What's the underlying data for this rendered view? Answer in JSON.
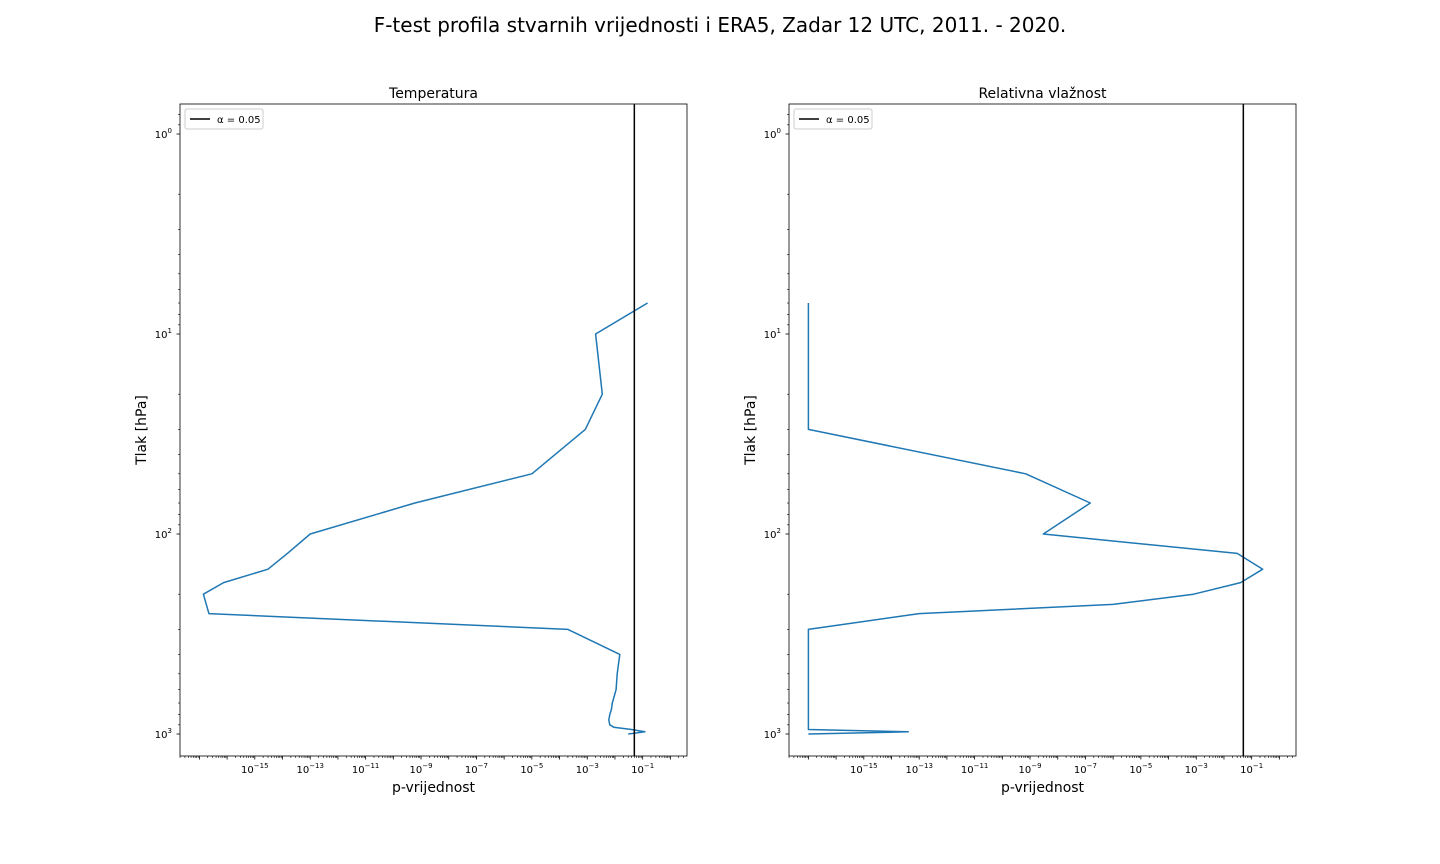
{
  "figure": {
    "suptitle": "F-test profila stvarnih vrijednosti i ERA5, Zadar 12 UTC, 2011. - 2020."
  },
  "colors": {
    "series": "#1f77b4",
    "alpha_line": "#000000",
    "axes": "#000000",
    "background": "#ffffff"
  },
  "chart_data": [
    {
      "type": "line",
      "title": "Temperatura",
      "xlabel": "p-vrijednost",
      "ylabel": "Tlak [hPa]",
      "xscale": "log",
      "yscale": "log",
      "y_inverted": true,
      "xlim_log10": [
        -17.7,
        0.6
      ],
      "ylim_log10": [
        3.11,
        -0.15
      ],
      "xticks": [
        {
          "exp": -15,
          "label": "10^-15"
        },
        {
          "exp": -13,
          "label": "10^-13"
        },
        {
          "exp": -11,
          "label": "10^-11"
        },
        {
          "exp": -9,
          "label": "10^-9"
        },
        {
          "exp": -7,
          "label": "10^-7"
        },
        {
          "exp": -5,
          "label": "10^-5"
        },
        {
          "exp": -3,
          "label": "10^-3"
        },
        {
          "exp": -1,
          "label": "10^-1"
        }
      ],
      "yticks": [
        {
          "exp": 0,
          "label": "10^0"
        },
        {
          "exp": 1,
          "label": "10^1"
        },
        {
          "exp": 2,
          "label": "10^2"
        },
        {
          "exp": 3,
          "label": "10^3"
        }
      ],
      "legend": {
        "location": "upper left",
        "entries": [
          {
            "label": "α = 0.05"
          }
        ]
      },
      "alpha_line": 0.05,
      "series": [
        {
          "pressure_hPa": [
            7,
            10,
            20,
            30,
            50,
            70,
            100,
            125,
            150,
            175,
            200,
            250,
            300,
            400,
            500,
            600,
            700,
            750,
            800,
            850,
            900,
            925,
            950,
            975,
            1000
          ],
          "p_value": [
            0.15,
            0.002,
            0.0035,
            0.00085,
            1e-05,
            6e-10,
            1e-13,
            1.5e-14,
            3e-15,
            7.5e-17,
            1.4e-17,
            2.2e-17,
            0.0002,
            0.015,
            0.012,
            0.011,
            0.008,
            0.0075,
            0.0065,
            0.006,
            0.0065,
            0.009,
            0.04,
            0.12,
            0.03
          ]
        }
      ]
    },
    {
      "type": "line",
      "title": "Relativna vlažnost",
      "xlabel": "p-vrijednost",
      "ylabel": "Tlak [hPa]",
      "xscale": "log",
      "yscale": "log",
      "y_inverted": true,
      "xlim_log10": [
        -17.7,
        0.6
      ],
      "ylim_log10": [
        3.11,
        -0.15
      ],
      "xticks": [
        {
          "exp": -15,
          "label": "10^-15"
        },
        {
          "exp": -13,
          "label": "10^-13"
        },
        {
          "exp": -11,
          "label": "10^-11"
        },
        {
          "exp": -9,
          "label": "10^-9"
        },
        {
          "exp": -7,
          "label": "10^-7"
        },
        {
          "exp": -5,
          "label": "10^-5"
        },
        {
          "exp": -3,
          "label": "10^-3"
        },
        {
          "exp": -1,
          "label": "10^-1"
        }
      ],
      "yticks": [
        {
          "exp": 0,
          "label": "10^0"
        },
        {
          "exp": 1,
          "label": "10^1"
        },
        {
          "exp": 2,
          "label": "10^2"
        },
        {
          "exp": 3,
          "label": "10^3"
        }
      ],
      "legend": {
        "location": "upper left",
        "entries": [
          {
            "label": "α = 0.05"
          }
        ]
      },
      "alpha_line": 0.05,
      "series": [
        {
          "pressure_hPa": [
            7,
            10,
            20,
            30,
            50,
            70,
            100,
            125,
            150,
            175,
            200,
            225,
            250,
            300,
            400,
            500,
            600,
            700,
            800,
            850,
            900,
            925,
            950,
            975,
            1000
          ],
          "p_value": [
            1e-17,
            1e-17,
            1e-17,
            1e-17,
            7e-10,
            1.5e-07,
            3e-09,
            0.03,
            0.25,
            0.04,
            0.0008,
            1e-06,
            1e-13,
            1e-17,
            1e-17,
            1e-17,
            1e-17,
            1e-17,
            1e-17,
            1e-17,
            1e-17,
            1e-17,
            1e-17,
            4e-14,
            1e-17
          ]
        }
      ]
    }
  ]
}
